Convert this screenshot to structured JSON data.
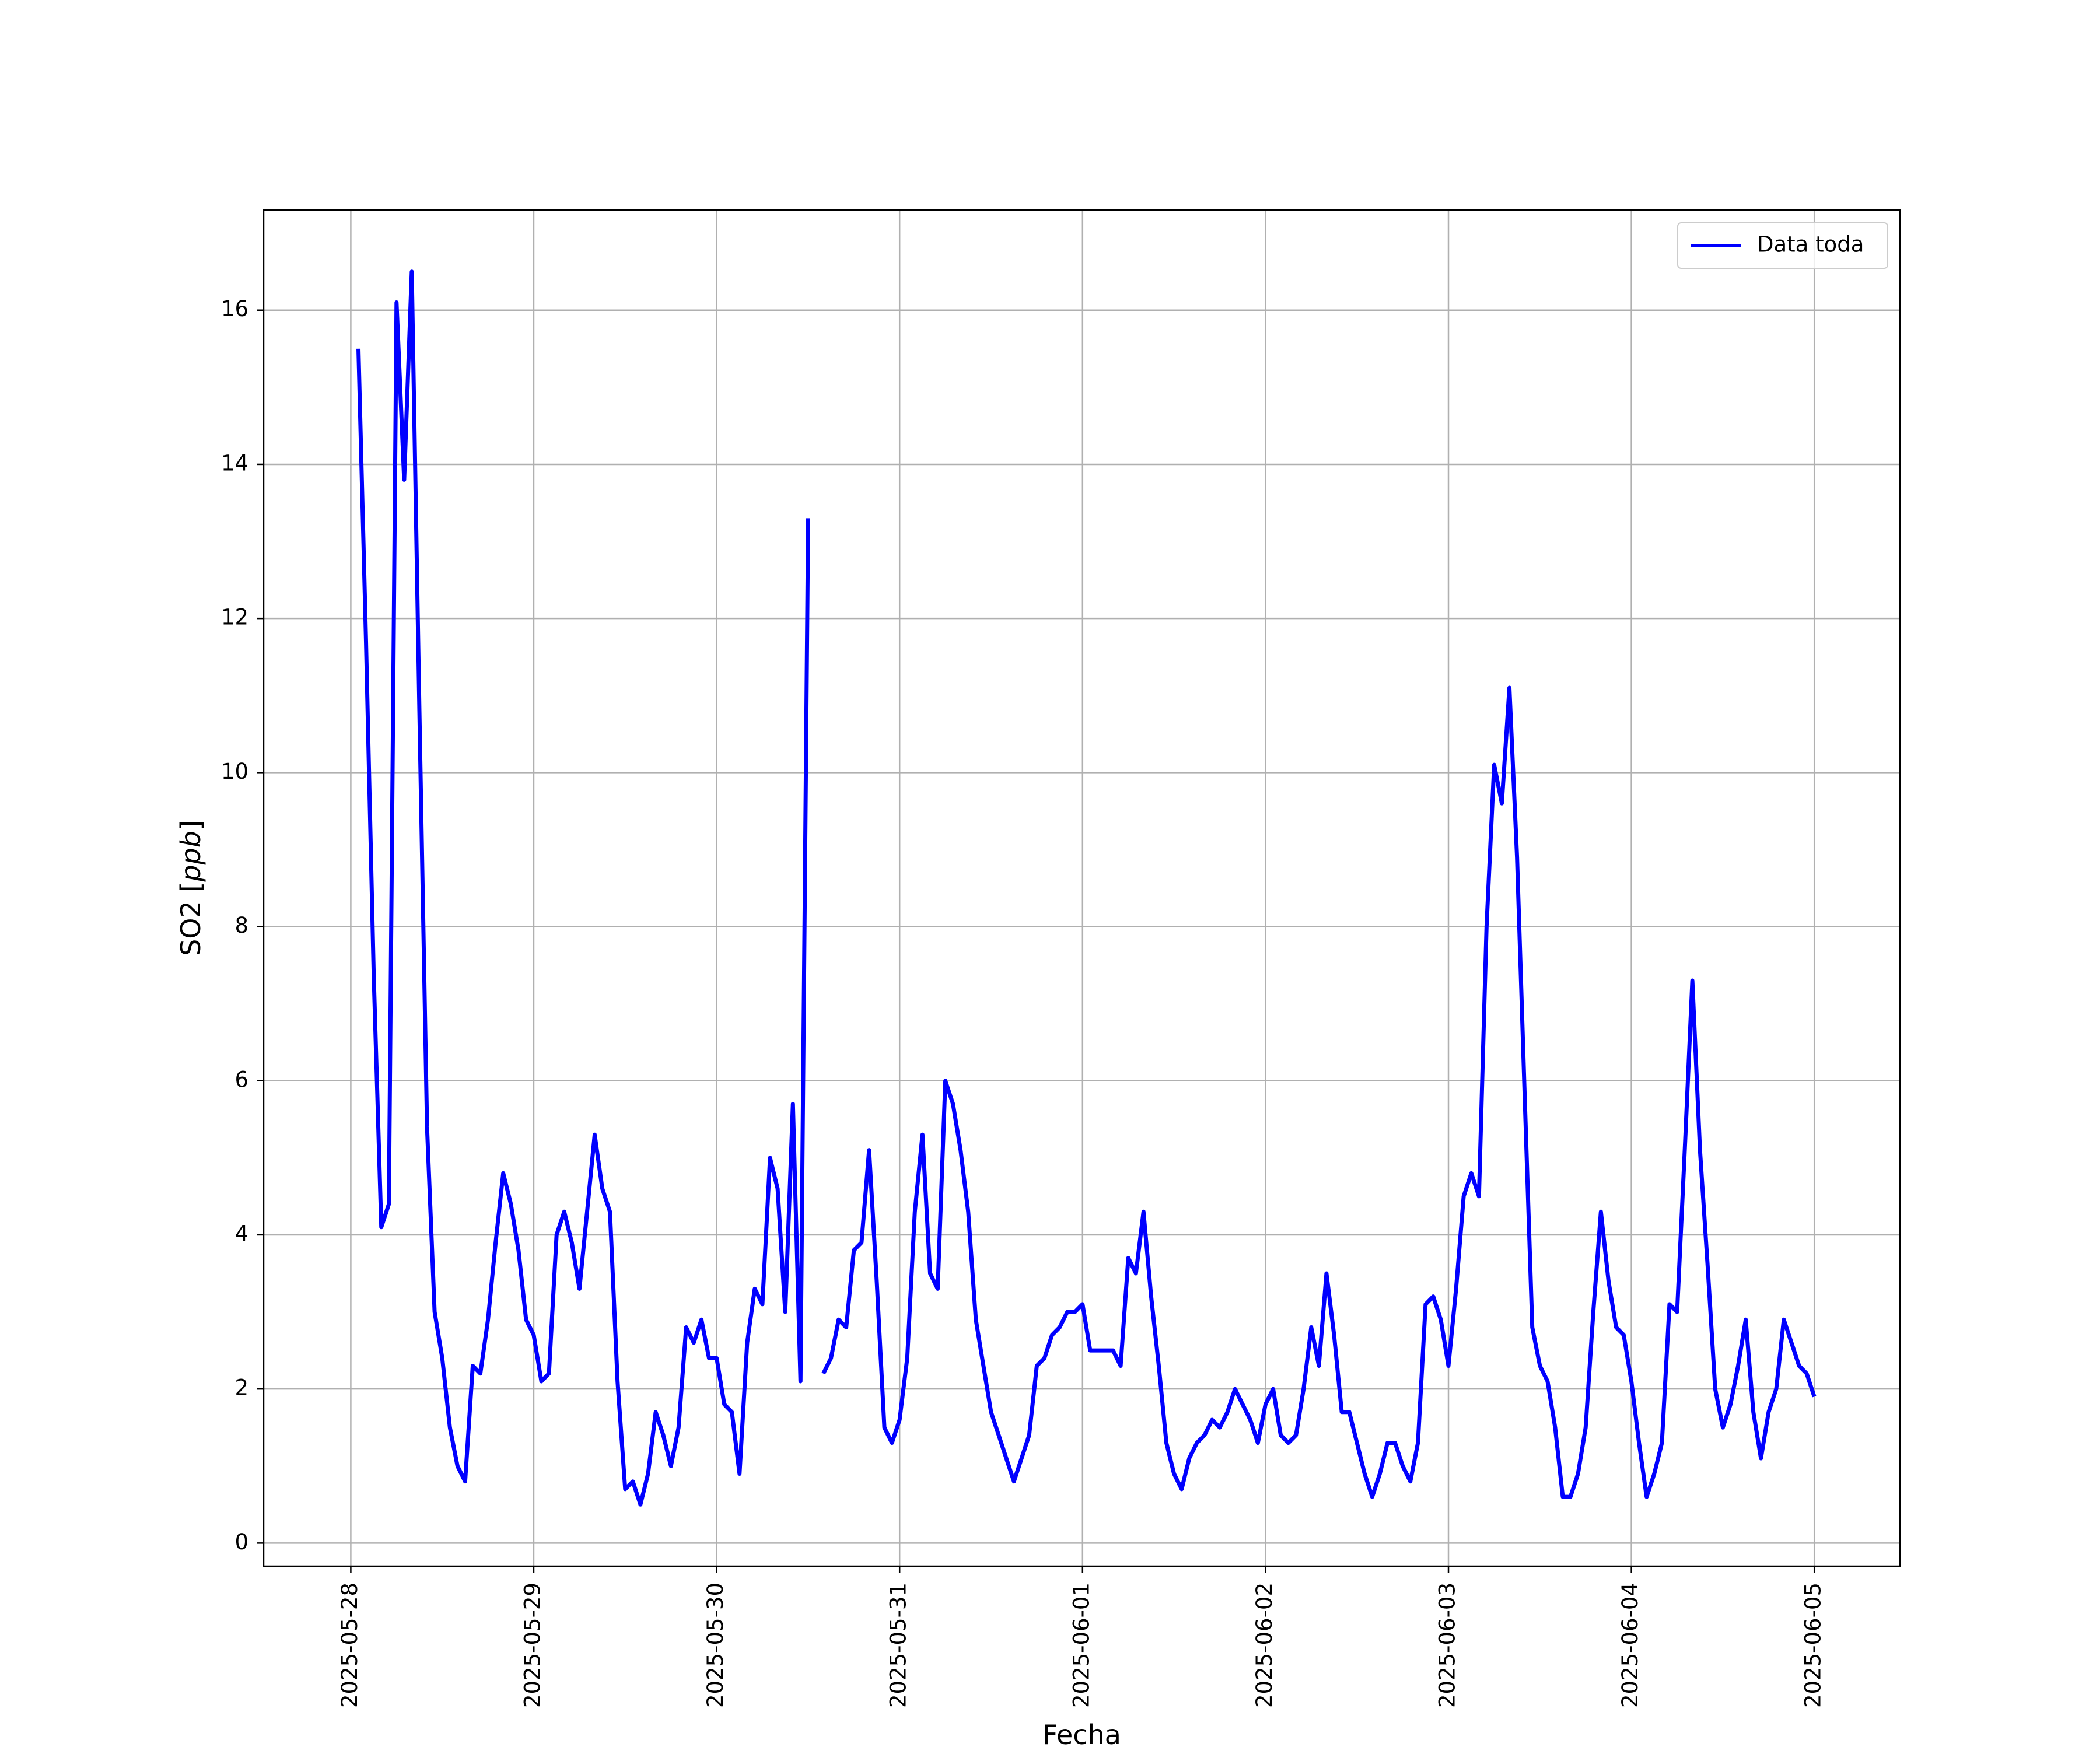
{
  "chart_data": {
    "type": "line",
    "xlabel": "Fecha",
    "ylabel": "SO2 [ppb]",
    "ylabel_plain": "SO2 [",
    "ylabel_unit": "ppb",
    "ylabel_close": "]",
    "x_ticks": [
      "2025-05-28",
      "2025-05-29",
      "2025-05-30",
      "2025-05-31",
      "2025-06-01",
      "2025-06-02",
      "2025-06-03",
      "2025-06-04",
      "2025-06-05"
    ],
    "y_ticks": [
      "0",
      "2",
      "4",
      "6",
      "8",
      "10",
      "12",
      "14",
      "16"
    ],
    "xlim": [
      "2025-05-27 12:34",
      "2025-06-05 11:14"
    ],
    "ylim": [
      -0.3,
      17.3
    ],
    "grid": true,
    "legend_position": "top-right",
    "colors": {
      "series": "#0000ff",
      "grid": "#b0b0b0"
    },
    "series": [
      {
        "name": "Data toda",
        "segments": [
          [
            [
              "2025-05-28 01:00",
              15.5
            ],
            [
              "2025-05-28 02:00",
              11.7
            ],
            [
              "2025-05-28 03:00",
              7.4
            ],
            [
              "2025-05-28 04:00",
              4.1
            ],
            [
              "2025-05-28 05:00",
              4.4
            ],
            [
              "2025-05-28 06:00",
              16.1
            ],
            [
              "2025-05-28 07:00",
              13.8
            ],
            [
              "2025-05-28 08:00",
              16.5
            ],
            [
              "2025-05-28 09:00",
              10.8
            ],
            [
              "2025-05-28 10:00",
              5.4
            ],
            [
              "2025-05-28 11:00",
              3.0
            ],
            [
              "2025-05-28 12:00",
              2.4
            ],
            [
              "2025-05-28 13:00",
              1.5
            ],
            [
              "2025-05-28 14:00",
              1.0
            ],
            [
              "2025-05-28 15:00",
              0.8
            ],
            [
              "2025-05-28 16:00",
              2.3
            ],
            [
              "2025-05-28 17:00",
              2.2
            ],
            [
              "2025-05-28 18:00",
              2.9
            ],
            [
              "2025-05-28 19:00",
              3.9
            ],
            [
              "2025-05-28 20:00",
              4.8
            ],
            [
              "2025-05-28 21:00",
              4.4
            ],
            [
              "2025-05-28 22:00",
              3.8
            ],
            [
              "2025-05-28 23:00",
              2.9
            ],
            [
              "2025-05-29 00:00",
              2.7
            ],
            [
              "2025-05-29 01:00",
              2.1
            ],
            [
              "2025-05-29 02:00",
              2.2
            ],
            [
              "2025-05-29 03:00",
              4.0
            ],
            [
              "2025-05-29 04:00",
              4.3
            ],
            [
              "2025-05-29 05:00",
              3.9
            ],
            [
              "2025-05-29 06:00",
              3.3
            ],
            [
              "2025-05-29 07:00",
              4.3
            ],
            [
              "2025-05-29 08:00",
              5.3
            ],
            [
              "2025-05-29 09:00",
              4.6
            ],
            [
              "2025-05-29 10:00",
              4.3
            ],
            [
              "2025-05-29 11:00",
              2.1
            ],
            [
              "2025-05-29 12:00",
              0.7
            ],
            [
              "2025-05-29 13:00",
              0.8
            ],
            [
              "2025-05-29 14:00",
              0.5
            ],
            [
              "2025-05-29 15:00",
              0.9
            ],
            [
              "2025-05-29 16:00",
              1.7
            ],
            [
              "2025-05-29 17:00",
              1.4
            ],
            [
              "2025-05-29 18:00",
              1.0
            ],
            [
              "2025-05-29 19:00",
              1.5
            ],
            [
              "2025-05-29 20:00",
              2.8
            ],
            [
              "2025-05-29 21:00",
              2.6
            ],
            [
              "2025-05-29 22:00",
              2.9
            ],
            [
              "2025-05-29 23:00",
              2.4
            ],
            [
              "2025-05-30 00:00",
              2.4
            ],
            [
              "2025-05-30 01:00",
              1.8
            ],
            [
              "2025-05-30 02:00",
              1.7
            ],
            [
              "2025-05-30 03:00",
              0.9
            ],
            [
              "2025-05-30 04:00",
              2.6
            ],
            [
              "2025-05-30 05:00",
              3.3
            ],
            [
              "2025-05-30 06:00",
              3.1
            ],
            [
              "2025-05-30 07:00",
              5.0
            ],
            [
              "2025-05-30 08:00",
              4.6
            ],
            [
              "2025-05-30 09:00",
              3.0
            ],
            [
              "2025-05-30 10:00",
              5.7
            ],
            [
              "2025-05-30 11:00",
              2.1
            ],
            [
              "2025-05-30 12:00",
              13.3
            ]
          ],
          [
            [
              "2025-05-30 14:00",
              2.2
            ],
            [
              "2025-05-30 15:00",
              2.4
            ],
            [
              "2025-05-30 16:00",
              2.9
            ],
            [
              "2025-05-30 17:00",
              2.8
            ],
            [
              "2025-05-30 18:00",
              3.8
            ],
            [
              "2025-05-30 19:00",
              3.9
            ],
            [
              "2025-05-30 20:00",
              5.1
            ],
            [
              "2025-05-30 21:00",
              3.4
            ],
            [
              "2025-05-30 22:00",
              1.5
            ],
            [
              "2025-05-30 23:00",
              1.3
            ],
            [
              "2025-05-31 00:00",
              1.6
            ],
            [
              "2025-05-31 01:00",
              2.4
            ],
            [
              "2025-05-31 02:00",
              4.3
            ],
            [
              "2025-05-31 03:00",
              5.3
            ],
            [
              "2025-05-31 04:00",
              3.5
            ],
            [
              "2025-05-31 05:00",
              3.3
            ],
            [
              "2025-05-31 06:00",
              6.0
            ],
            [
              "2025-05-31 07:00",
              5.7
            ],
            [
              "2025-05-31 08:00",
              5.1
            ],
            [
              "2025-05-31 09:00",
              4.3
            ],
            [
              "2025-05-31 10:00",
              2.9
            ],
            [
              "2025-05-31 11:00",
              2.3
            ],
            [
              "2025-05-31 12:00",
              1.7
            ],
            [
              "2025-05-31 13:00",
              1.4
            ],
            [
              "2025-05-31 14:00",
              1.1
            ],
            [
              "2025-05-31 15:00",
              0.8
            ],
            [
              "2025-05-31 16:00",
              1.1
            ],
            [
              "2025-05-31 17:00",
              1.4
            ],
            [
              "2025-05-31 18:00",
              2.3
            ],
            [
              "2025-05-31 19:00",
              2.4
            ],
            [
              "2025-05-31 20:00",
              2.7
            ],
            [
              "2025-05-31 21:00",
              2.8
            ],
            [
              "2025-05-31 22:00",
              3.0
            ],
            [
              "2025-05-31 23:00",
              3.0
            ],
            [
              "2025-06-01 00:00",
              3.1
            ],
            [
              "2025-06-01 01:00",
              2.5
            ],
            [
              "2025-06-01 02:00",
              2.5
            ],
            [
              "2025-06-01 03:00",
              2.5
            ],
            [
              "2025-06-01 04:00",
              2.5
            ],
            [
              "2025-06-01 05:00",
              2.3
            ],
            [
              "2025-06-01 06:00",
              3.7
            ],
            [
              "2025-06-01 07:00",
              3.5
            ],
            [
              "2025-06-01 08:00",
              4.3
            ],
            [
              "2025-06-01 09:00",
              3.2
            ],
            [
              "2025-06-01 10:00",
              2.3
            ],
            [
              "2025-06-01 11:00",
              1.3
            ],
            [
              "2025-06-01 12:00",
              0.9
            ],
            [
              "2025-06-01 13:00",
              0.7
            ],
            [
              "2025-06-01 14:00",
              1.1
            ],
            [
              "2025-06-01 15:00",
              1.3
            ],
            [
              "2025-06-01 16:00",
              1.4
            ],
            [
              "2025-06-01 17:00",
              1.6
            ],
            [
              "2025-06-01 18:00",
              1.5
            ],
            [
              "2025-06-01 19:00",
              1.7
            ],
            [
              "2025-06-01 20:00",
              2.0
            ],
            [
              "2025-06-01 21:00",
              1.8
            ],
            [
              "2025-06-01 22:00",
              1.6
            ],
            [
              "2025-06-01 23:00",
              1.3
            ],
            [
              "2025-06-02 00:00",
              1.8
            ],
            [
              "2025-06-02 01:00",
              2.0
            ],
            [
              "2025-06-02 02:00",
              1.4
            ],
            [
              "2025-06-02 03:00",
              1.3
            ],
            [
              "2025-06-02 04:00",
              1.4
            ],
            [
              "2025-06-02 05:00",
              2.0
            ],
            [
              "2025-06-02 06:00",
              2.8
            ],
            [
              "2025-06-02 07:00",
              2.3
            ],
            [
              "2025-06-02 08:00",
              3.5
            ],
            [
              "2025-06-02 09:00",
              2.7
            ],
            [
              "2025-06-02 10:00",
              1.7
            ],
            [
              "2025-06-02 11:00",
              1.7
            ],
            [
              "2025-06-02 12:00",
              1.3
            ],
            [
              "2025-06-02 13:00",
              0.9
            ],
            [
              "2025-06-02 14:00",
              0.6
            ],
            [
              "2025-06-02 15:00",
              0.9
            ],
            [
              "2025-06-02 16:00",
              1.3
            ],
            [
              "2025-06-02 17:00",
              1.3
            ],
            [
              "2025-06-02 18:00",
              1.0
            ],
            [
              "2025-06-02 19:00",
              0.8
            ],
            [
              "2025-06-02 20:00",
              1.3
            ],
            [
              "2025-06-02 21:00",
              3.1
            ],
            [
              "2025-06-02 22:00",
              3.2
            ],
            [
              "2025-06-02 23:00",
              2.9
            ],
            [
              "2025-06-03 00:00",
              2.3
            ],
            [
              "2025-06-03 01:00",
              3.3
            ],
            [
              "2025-06-03 02:00",
              4.5
            ],
            [
              "2025-06-03 03:00",
              4.8
            ],
            [
              "2025-06-03 04:00",
              4.5
            ],
            [
              "2025-06-03 05:00",
              8.0
            ],
            [
              "2025-06-03 06:00",
              10.1
            ],
            [
              "2025-06-03 07:00",
              9.6
            ],
            [
              "2025-06-03 08:00",
              11.1
            ],
            [
              "2025-06-03 09:00",
              8.9
            ],
            [
              "2025-06-03 10:00",
              5.8
            ],
            [
              "2025-06-03 11:00",
              2.8
            ],
            [
              "2025-06-03 12:00",
              2.3
            ],
            [
              "2025-06-03 13:00",
              2.1
            ],
            [
              "2025-06-03 14:00",
              1.5
            ],
            [
              "2025-06-03 15:00",
              0.6
            ],
            [
              "2025-06-03 16:00",
              0.6
            ],
            [
              "2025-06-03 17:00",
              0.9
            ],
            [
              "2025-06-03 18:00",
              1.5
            ],
            [
              "2025-06-03 19:00",
              3.0
            ],
            [
              "2025-06-03 20:00",
              4.3
            ],
            [
              "2025-06-03 21:00",
              3.4
            ],
            [
              "2025-06-03 22:00",
              2.8
            ],
            [
              "2025-06-03 23:00",
              2.7
            ],
            [
              "2025-06-04 00:00",
              2.1
            ],
            [
              "2025-06-04 01:00",
              1.3
            ],
            [
              "2025-06-04 02:00",
              0.6
            ],
            [
              "2025-06-04 03:00",
              0.9
            ],
            [
              "2025-06-04 04:00",
              1.3
            ],
            [
              "2025-06-04 05:00",
              3.1
            ],
            [
              "2025-06-04 06:00",
              3.0
            ],
            [
              "2025-06-04 07:00",
              5.1
            ],
            [
              "2025-06-04 08:00",
              7.3
            ],
            [
              "2025-06-04 09:00",
              5.1
            ],
            [
              "2025-06-04 10:00",
              3.6
            ],
            [
              "2025-06-04 11:00",
              2.0
            ],
            [
              "2025-06-04 12:00",
              1.5
            ],
            [
              "2025-06-04 13:00",
              1.8
            ],
            [
              "2025-06-04 14:00",
              2.3
            ],
            [
              "2025-06-04 15:00",
              2.9
            ],
            [
              "2025-06-04 16:00",
              1.7
            ],
            [
              "2025-06-04 17:00",
              1.1
            ],
            [
              "2025-06-04 18:00",
              1.7
            ],
            [
              "2025-06-04 19:00",
              2.0
            ],
            [
              "2025-06-04 20:00",
              2.9
            ],
            [
              "2025-06-04 21:00",
              2.6
            ],
            [
              "2025-06-04 22:00",
              2.3
            ],
            [
              "2025-06-04 23:00",
              2.2
            ],
            [
              "2025-06-05 00:00",
              1.9
            ]
          ]
        ]
      }
    ]
  }
}
